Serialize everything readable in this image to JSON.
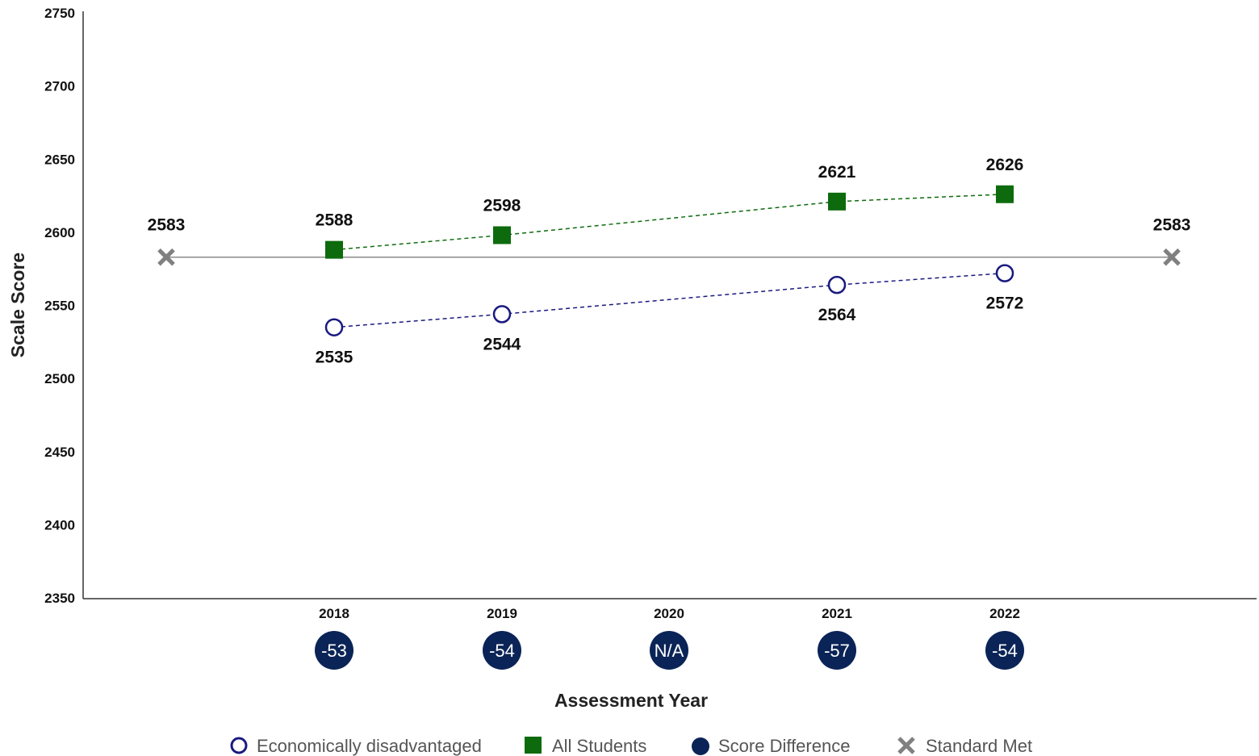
{
  "chart_data": {
    "type": "line",
    "xlabel": "Assessment Year",
    "ylabel": "Scale Score",
    "ylim": [
      2350,
      2750
    ],
    "yticks": [
      2350,
      2400,
      2450,
      2500,
      2550,
      2600,
      2650,
      2700,
      2750
    ],
    "categories": [
      "2018",
      "2019",
      "2020",
      "2021",
      "2022"
    ],
    "series": [
      {
        "name": "Economically disadvantaged",
        "marker": "open-circle",
        "color": "#1a1a80",
        "values": [
          2535,
          2544,
          null,
          2564,
          2572
        ]
      },
      {
        "name": "All Students",
        "marker": "square",
        "color": "#0d6b0d",
        "values": [
          2588,
          2598,
          null,
          2621,
          2626
        ]
      }
    ],
    "standard_met": {
      "name": "Standard Met",
      "value": 2583,
      "color": "#808080"
    },
    "score_difference": {
      "name": "Score Difference",
      "color": "#0b2457",
      "values": [
        "-53",
        "-54",
        "N/A",
        "-57",
        "-54"
      ]
    },
    "legend": {
      "position": "bottom",
      "items": [
        "Economically disadvantaged",
        "All Students",
        "Score Difference",
        "Standard Met"
      ]
    },
    "grid": false
  }
}
